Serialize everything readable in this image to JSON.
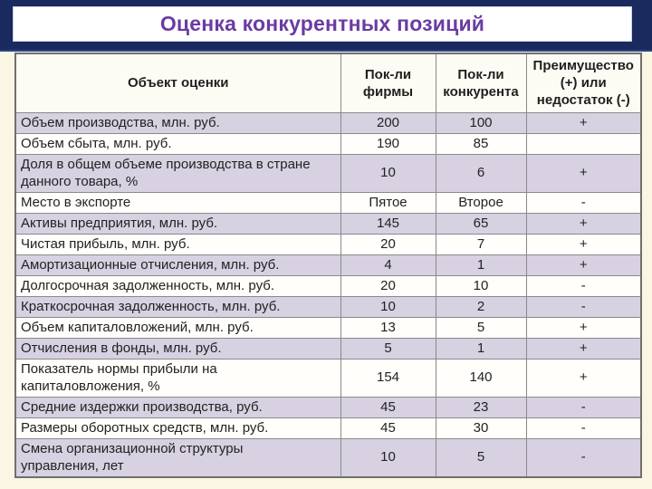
{
  "title": "Оценка конкурентных позиций",
  "table": {
    "columns": [
      "Объект оценки",
      "Пок-ли\nфирмы",
      "Пок-ли\nконкурента",
      "Преимущество\n(+) или\nнедостаток (-)"
    ],
    "rows": [
      {
        "label": "Объем производства, млн. руб.",
        "firm": "200",
        "competitor": "100",
        "advantage": "+"
      },
      {
        "label": "Объем сбыта, млн. руб.",
        "firm": "190",
        "competitor": "85",
        "advantage": ""
      },
      {
        "label": "Доля в общем объеме производства в стране\nданного товара, %",
        "firm": "10",
        "competitor": "6",
        "advantage": "+"
      },
      {
        "label": "Место в экспорте",
        "firm": "Пятое",
        "competitor": "Второе",
        "advantage": "-"
      },
      {
        "label": "Активы предприятия, млн. руб.",
        "firm": "145",
        "competitor": "65",
        "advantage": "+"
      },
      {
        "label": "Чистая прибыль, млн. руб.",
        "firm": "20",
        "competitor": "7",
        "advantage": "+"
      },
      {
        "label": "Амортизационные отчисления, млн. руб.",
        "firm": "4",
        "competitor": "1",
        "advantage": "+"
      },
      {
        "label": "Долгосрочная задолженность, млн. руб.",
        "firm": "20",
        "competitor": "10",
        "advantage": "-"
      },
      {
        "label": "Краткосрочная задолженность, млн. руб.",
        "firm": "10",
        "competitor": "2",
        "advantage": "-"
      },
      {
        "label": "Объем капиталовложений, млн. руб.",
        "firm": "13",
        "competitor": "5",
        "advantage": "+"
      },
      {
        "label": "Отчисления в фонды, млн. руб.",
        "firm": "5",
        "competitor": "1",
        "advantage": "+"
      },
      {
        "label": "Показатель нормы прибыли на\nкапиталовложения, %",
        "firm": "154",
        "competitor": "140",
        "advantage": "+"
      },
      {
        "label": "Средние издержки производства, руб.",
        "firm": "45",
        "competitor": "23",
        "advantage": "-"
      },
      {
        "label": "Размеры оборотных средств, млн. руб.",
        "firm": "45",
        "competitor": "30",
        "advantage": "-"
      },
      {
        "label": "Смена организационной структуры\nуправления, лет",
        "firm": "10",
        "competitor": "5",
        "advantage": "-"
      }
    ]
  },
  "colors": {
    "header_band_navy": "#1a2a5f",
    "title_purple": "#6b3ba3",
    "row_lavender": "#d7d1e1",
    "row_white": "#fffefa",
    "slide_background_cream": "#fbf6e3",
    "table_border_gray": "#8a8a8a"
  }
}
